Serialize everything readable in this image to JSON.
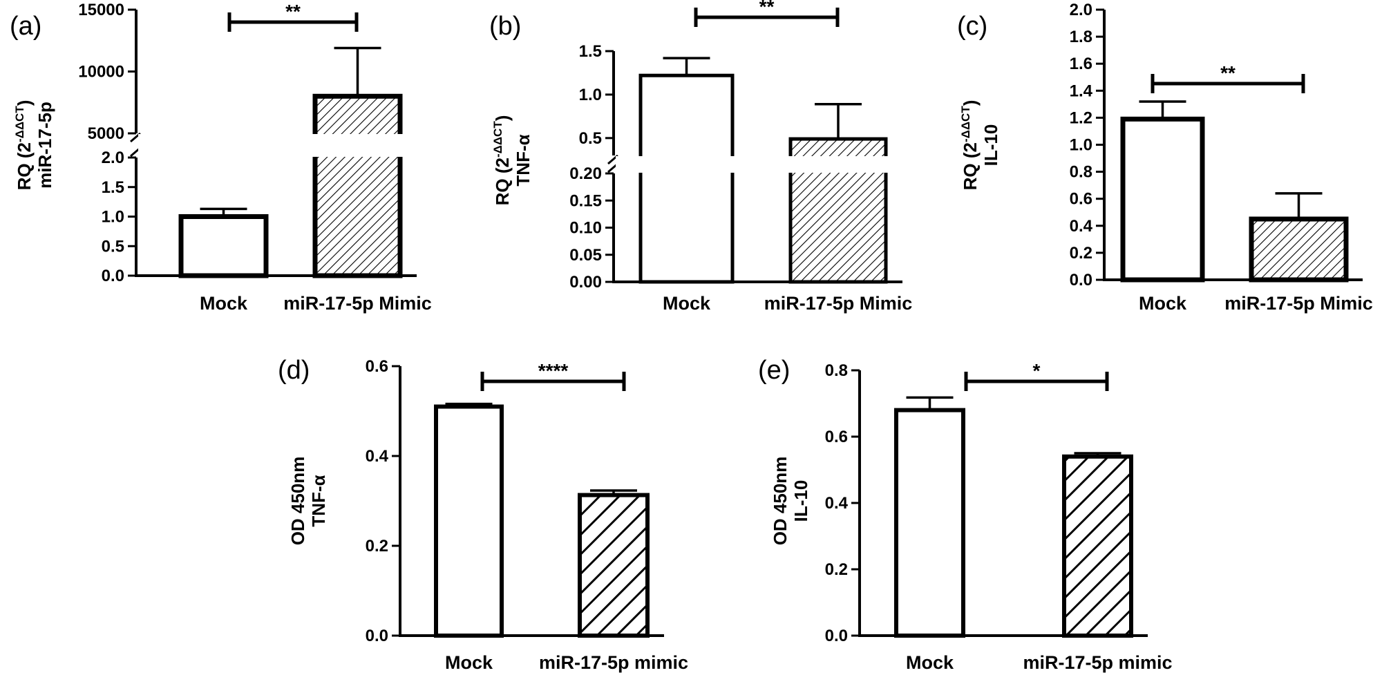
{
  "chart_data": [
    {
      "id": "a",
      "panel_label": "(a)",
      "type": "bar",
      "broken_axis": true,
      "ylabel_top": "RQ (2",
      "ylabel_sup": "-ΔΔCT",
      "ylabel_close": ")",
      "ylabel_bottom": "miR-17-5p",
      "categories": [
        "Mock",
        "miR-17-5p Mimic"
      ],
      "values": [
        1.0,
        8000
      ],
      "errors": [
        0.13,
        3900
      ],
      "hatched": [
        false,
        true
      ],
      "lower_segment": {
        "range": [
          0,
          2.0
        ],
        "ticks": [
          "0.0",
          "0.5",
          "1.0",
          "1.5",
          "2.0"
        ],
        "tick_values": [
          0,
          0.5,
          1.0,
          1.5,
          2.0
        ]
      },
      "upper_segment": {
        "range": [
          5000,
          15000
        ],
        "ticks": [
          "5000",
          "10000",
          "15000"
        ],
        "tick_values": [
          5000,
          10000,
          15000
        ]
      },
      "significance": "**"
    },
    {
      "id": "b",
      "panel_label": "(b)",
      "type": "bar",
      "broken_axis": true,
      "ylabel_top": "RQ (2",
      "ylabel_sup": "-ΔΔCT",
      "ylabel_close": ")",
      "ylabel_bottom": "TNF-α",
      "categories": [
        "Mock",
        "miR-17-5p Mimic"
      ],
      "values": [
        1.22,
        0.49
      ],
      "errors": [
        0.2,
        0.4
      ],
      "hatched": [
        false,
        true
      ],
      "lower_segment": {
        "range": [
          0,
          0.2
        ],
        "ticks": [
          "0.00",
          "0.05",
          "0.10",
          "0.15",
          "0.20"
        ],
        "tick_values": [
          0,
          0.05,
          0.1,
          0.15,
          0.2
        ]
      },
      "upper_segment": {
        "range": [
          0.3,
          1.5
        ],
        "ticks": [
          "0.5",
          "1.0",
          "1.5"
        ],
        "tick_values": [
          0.5,
          1.0,
          1.5
        ]
      },
      "significance": "**"
    },
    {
      "id": "c",
      "panel_label": "(c)",
      "type": "bar",
      "broken_axis": false,
      "ylabel_top": "RQ (2",
      "ylabel_sup": "-ΔΔCT",
      "ylabel_close": ")",
      "ylabel_bottom": "IL-10",
      "categories": [
        "Mock",
        "miR-17-5p Mimic"
      ],
      "values": [
        1.19,
        0.45
      ],
      "errors": [
        0.13,
        0.19
      ],
      "hatched": [
        false,
        true
      ],
      "ylim": [
        0,
        2.0
      ],
      "ticks": [
        "0.0",
        "0.2",
        "0.4",
        "0.6",
        "0.8",
        "1.0",
        "1.2",
        "1.4",
        "1.6",
        "1.8",
        "2.0"
      ],
      "tick_values": [
        0,
        0.2,
        0.4,
        0.6,
        0.8,
        1.0,
        1.2,
        1.4,
        1.6,
        1.8,
        2.0
      ],
      "significance": "**"
    },
    {
      "id": "d",
      "panel_label": "(d)",
      "type": "bar",
      "broken_axis": false,
      "ylabel_top": "OD 450nm",
      "ylabel_bottom": "TNF-α",
      "categories": [
        "Mock",
        "miR-17-5p mimic"
      ],
      "values": [
        0.51,
        0.313
      ],
      "errors": [
        0.006,
        0.01
      ],
      "hatched": [
        false,
        true
      ],
      "ylim": [
        0,
        0.6
      ],
      "ticks": [
        "0.0",
        "0.2",
        "0.4",
        "0.6"
      ],
      "tick_values": [
        0,
        0.2,
        0.4,
        0.6
      ],
      "significance": "****"
    },
    {
      "id": "e",
      "panel_label": "(e)",
      "type": "bar",
      "broken_axis": false,
      "ylabel_top": "OD 450nm",
      "ylabel_bottom": "IL-10",
      "categories": [
        "Mock",
        "miR-17-5p mimic"
      ],
      "values": [
        0.68,
        0.54
      ],
      "errors": [
        0.038,
        0.01
      ],
      "hatched": [
        false,
        true
      ],
      "ylim": [
        0,
        0.8
      ],
      "ticks": [
        "0.0",
        "0.2",
        "0.4",
        "0.6",
        "0.8"
      ],
      "tick_values": [
        0,
        0.2,
        0.4,
        0.6,
        0.8
      ],
      "significance": "*"
    }
  ]
}
